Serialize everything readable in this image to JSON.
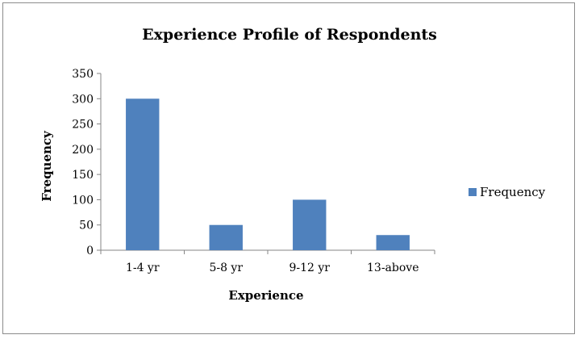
{
  "chart_data": {
    "type": "bar",
    "title": "Experience Profile of Respondents",
    "xlabel": "Experience",
    "ylabel": "Frequency",
    "categories": [
      "1-4 yr",
      "5-8 yr",
      "9-12 yr",
      "13-above"
    ],
    "series": [
      {
        "name": "Frequency",
        "values": [
          300,
          50,
          100,
          30
        ],
        "color": "#4f81bd"
      }
    ],
    "ylim": [
      0,
      350
    ],
    "yticks": [
      0,
      50,
      100,
      150,
      200,
      250,
      300,
      350
    ],
    "grid": false,
    "legend": "right"
  }
}
